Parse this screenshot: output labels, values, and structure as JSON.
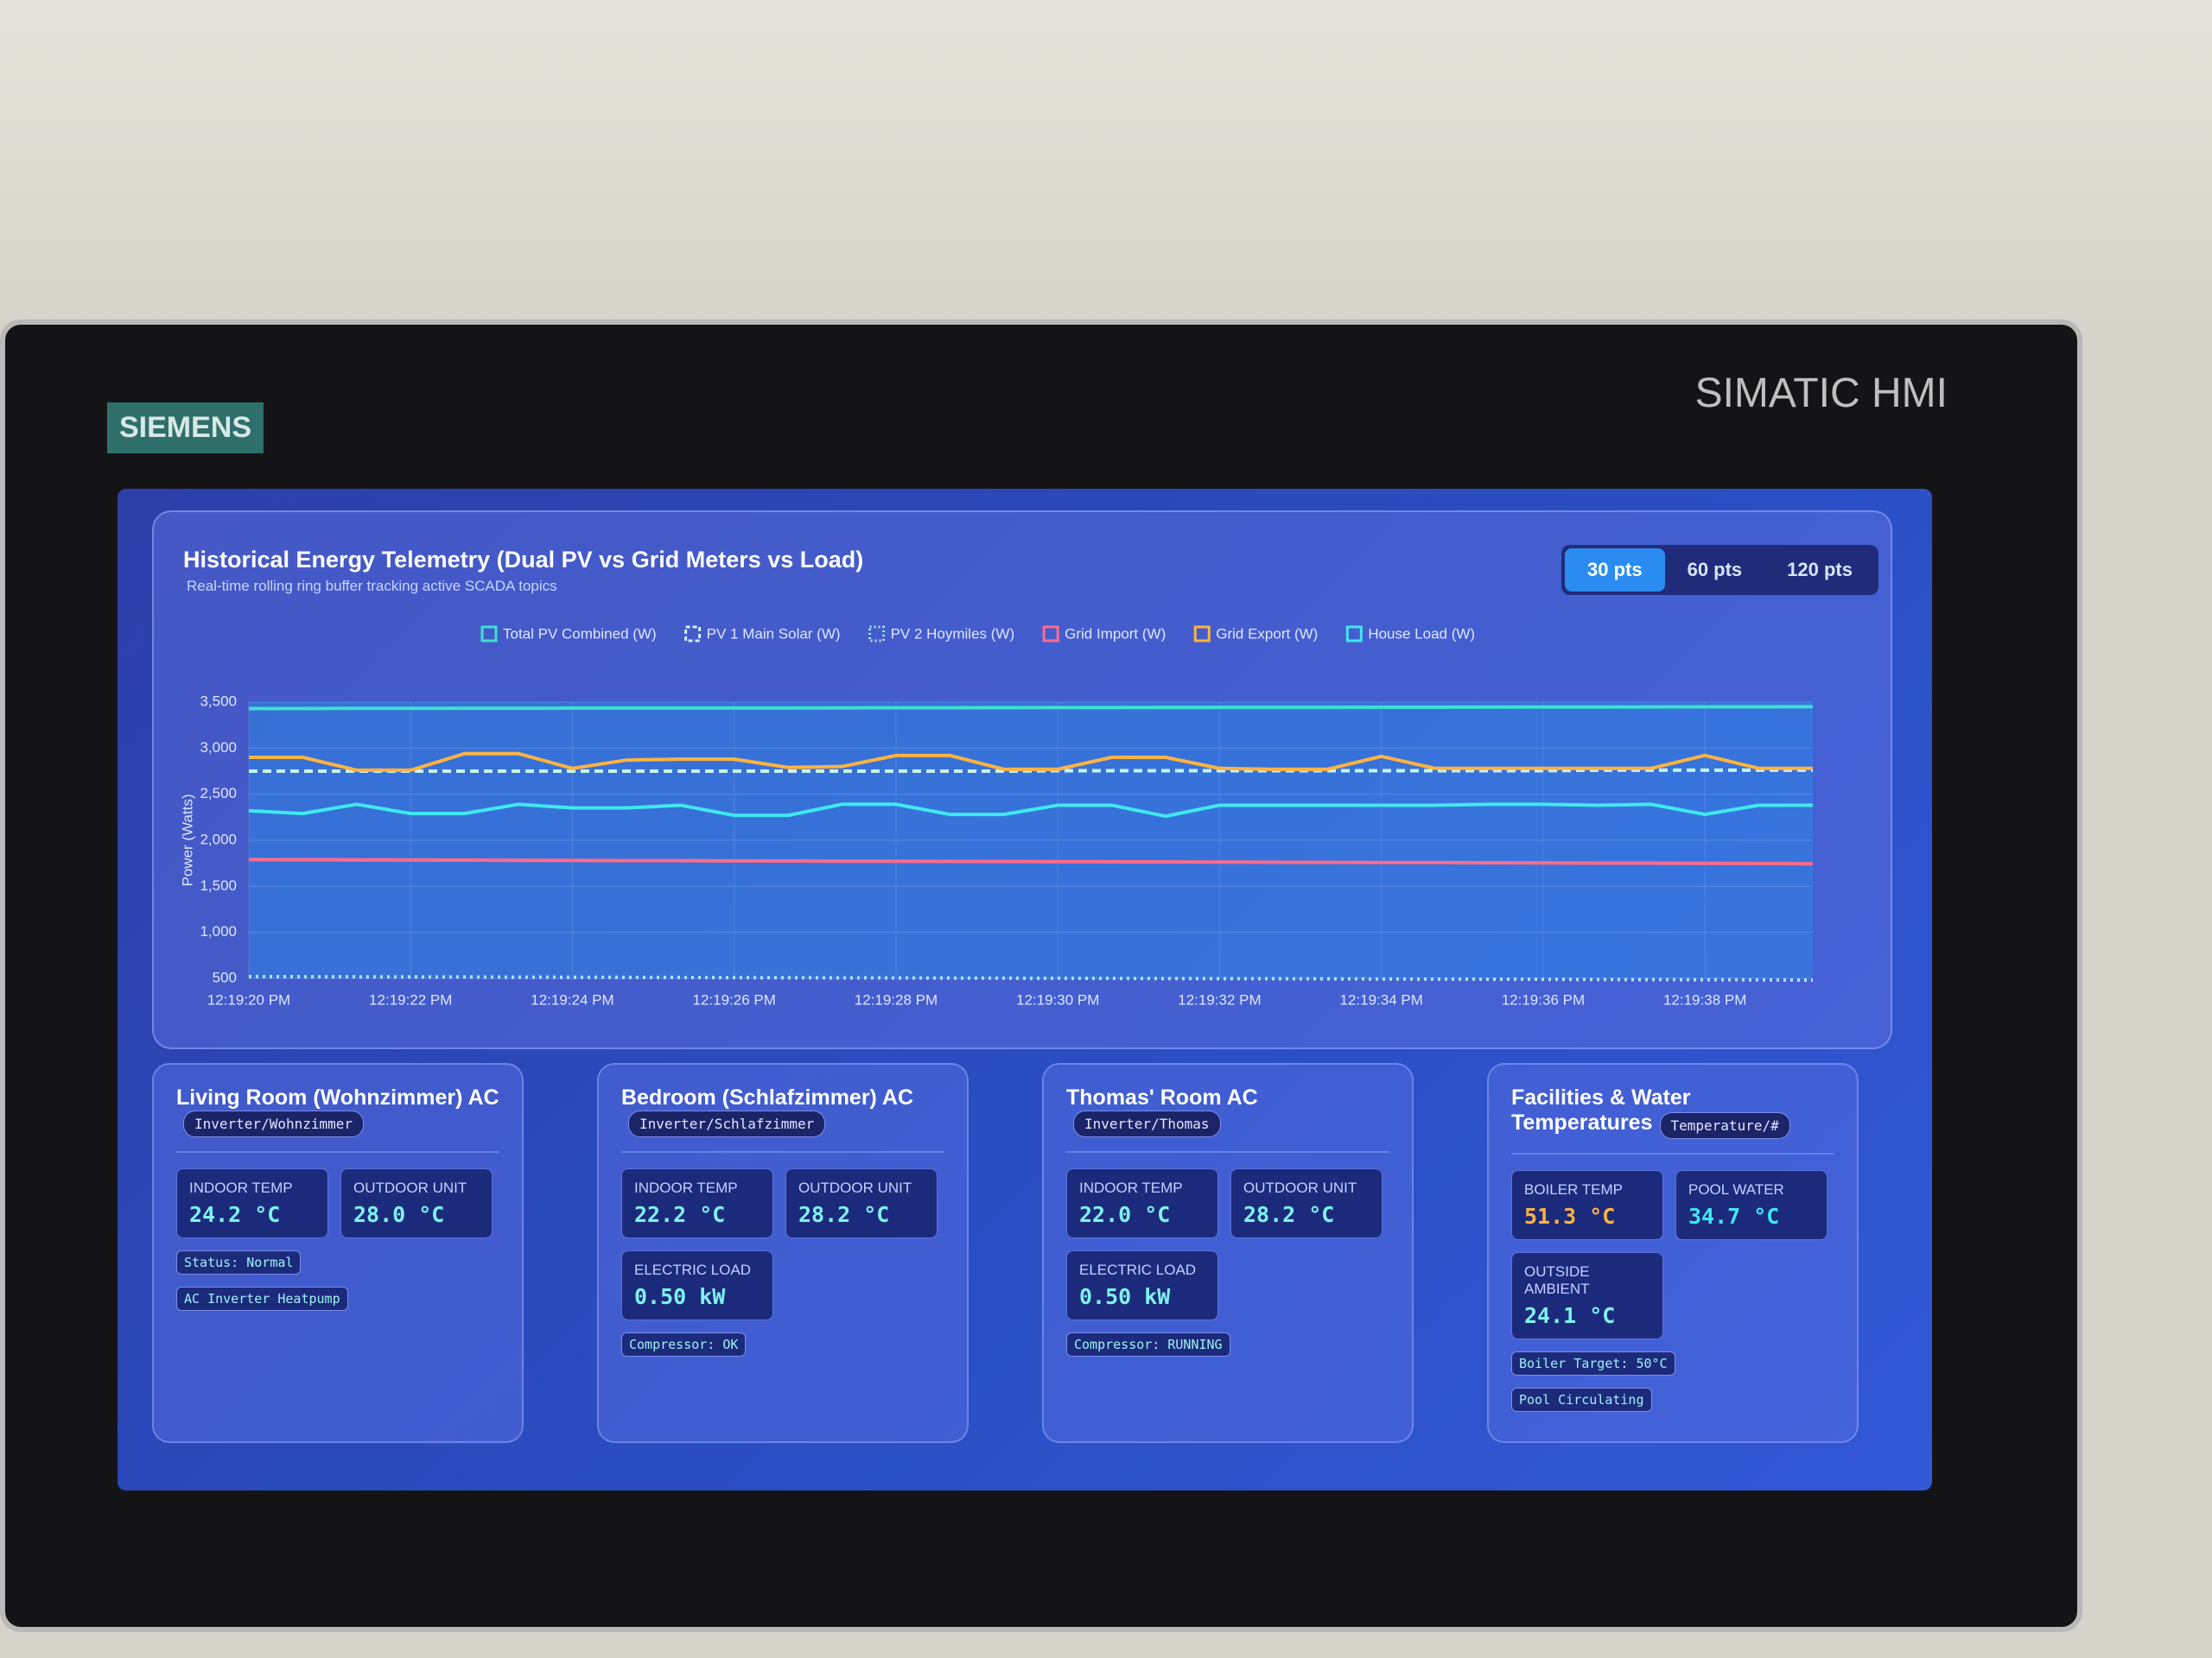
{
  "device": {
    "brand": "SIEMENS",
    "model": "SIMATIC HMI"
  },
  "header": {
    "title": "Historical Energy Telemetry (Dual PV vs Grid Meters vs Load)",
    "subtitle": "Real-time rolling ring buffer tracking active SCADA topics",
    "buttons": [
      "30 pts",
      "60 pts",
      "120 pts"
    ]
  },
  "chart_data": {
    "type": "line",
    "y_label": "Power (Watts)",
    "categories": [
      "12:19:20 PM",
      null,
      null,
      "12:19:22 PM",
      null,
      null,
      "12:19:24 PM",
      null,
      null,
      "12:19:26 PM",
      null,
      null,
      "12:19:28 PM",
      null,
      null,
      "12:19:30 PM",
      null,
      null,
      "12:19:32 PM",
      null,
      null,
      "12:19:34 PM",
      null,
      null,
      "12:19:36 PM",
      null,
      null,
      "12:19:38 PM",
      null,
      null
    ],
    "ylim": [
      500,
      3500
    ],
    "yticks": [
      500,
      {
        "value": 1000,
        "label": "1,000"
      },
      {
        "value": 1500,
        "label": "1,500"
      },
      {
        "value": 2000,
        "label": "2,000"
      },
      {
        "value": 2500,
        "label": "2,500"
      },
      {
        "value": 3000,
        "label": "3,000"
      },
      {
        "value": 3500,
        "label": "3,500"
      }
    ],
    "grid": true,
    "series": [
      {
        "name": "Total PV Combined (W)",
        "color": "#3de0d0",
        "style": "solid",
        "values": [
          3430,
          3430,
          3432,
          3432,
          3433,
          3433,
          3434,
          3435,
          3435,
          3436,
          3436,
          3437,
          3438,
          3438,
          3439,
          3440,
          3440,
          3441,
          3442,
          3442,
          3443,
          3444,
          3444,
          3445,
          3446,
          3446,
          3447,
          3448,
          3449,
          3450
        ]
      },
      {
        "name": "PV 1 Main Solar (W)",
        "color": "#c8f4f0",
        "style": "dashed",
        "values": [
          2750,
          2750,
          2750,
          2750,
          2750,
          2750,
          2750,
          2750,
          2750,
          2750,
          2750,
          2750,
          2750,
          2750,
          2750,
          2755,
          2755,
          2755,
          2755,
          2755,
          2755,
          2755,
          2755,
          2755,
          2755,
          2760,
          2760,
          2760,
          2760,
          2760
        ]
      },
      {
        "name": "PV 2 Hoymiles (W)",
        "color": "#a8e4f4",
        "style": "dotted",
        "values": [
          520,
          518,
          517,
          516,
          515,
          513,
          512,
          511,
          510,
          508,
          507,
          506,
          505,
          503,
          502,
          501,
          500,
          498,
          497,
          496,
          495,
          493,
          492,
          491,
          490,
          488,
          487,
          486,
          485,
          480
        ]
      },
      {
        "name": "Grid Import (W)",
        "color": "#ff6b8a",
        "style": "solid",
        "values": [
          1790,
          1788,
          1787,
          1785,
          1784,
          1782,
          1781,
          1779,
          1778,
          1776,
          1775,
          1773,
          1772,
          1770,
          1769,
          1767,
          1766,
          1764,
          1763,
          1761,
          1760,
          1758,
          1757,
          1755,
          1754,
          1752,
          1751,
          1749,
          1748,
          1745
        ]
      },
      {
        "name": "Grid Export (W)",
        "color": "#ffb340",
        "style": "solid",
        "values": [
          2900,
          2900,
          2760,
          2760,
          2940,
          2940,
          2780,
          2870,
          2880,
          2880,
          2790,
          2800,
          2920,
          2920,
          2770,
          2770,
          2900,
          2900,
          2780,
          2770,
          2770,
          2910,
          2780,
          2780,
          2780,
          2780,
          2780,
          2920,
          2780,
          2780
        ]
      },
      {
        "name": "House Load (W)",
        "color": "#40e8f0",
        "style": "solid",
        "values": [
          2320,
          2290,
          2390,
          2290,
          2290,
          2390,
          2350,
          2350,
          2380,
          2270,
          2270,
          2390,
          2390,
          2280,
          2280,
          2380,
          2380,
          2260,
          2380,
          2380,
          2380,
          2380,
          2380,
          2390,
          2390,
          2380,
          2390,
          2280,
          2380,
          2380
        ]
      }
    ]
  },
  "cards": [
    {
      "title": "Living Room (Wohnzimmer) AC",
      "topic": "Inverter/Wohnzimmer",
      "metrics": [
        {
          "label": "INDOOR TEMP",
          "value": "24.2 °C"
        },
        {
          "label": "OUTDOOR UNIT",
          "value": "28.0 °C"
        }
      ],
      "badges": [
        "Status: Normal",
        "AC Inverter Heatpump"
      ]
    },
    {
      "title": "Bedroom (Schlafzimmer) AC",
      "topic": "Inverter/Schlafzimmer",
      "metrics": [
        {
          "label": "INDOOR TEMP",
          "value": "22.2 °C"
        },
        {
          "label": "OUTDOOR UNIT",
          "value": "28.2 °C"
        },
        {
          "label": "ELECTRIC LOAD",
          "value": "0.50 kW"
        }
      ],
      "badges": [
        "Compressor: OK"
      ]
    },
    {
      "title": "Thomas' Room AC",
      "topic": "Inverter/Thomas",
      "metrics": [
        {
          "label": "INDOOR TEMP",
          "value": "22.0 °C"
        },
        {
          "label": "OUTDOOR UNIT",
          "value": "28.2 °C"
        },
        {
          "label": "ELECTRIC LOAD",
          "value": "0.50 kW"
        }
      ],
      "badges": [
        "Compressor: RUNNING"
      ]
    },
    {
      "title": "Facilities & Water Temperatures",
      "topic": "Temperature/#",
      "metrics": [
        {
          "label": "BOILER TEMP",
          "value": "51.3 °C",
          "color": "#ffb340"
        },
        {
          "label": "POOL WATER",
          "value": "34.7 °C",
          "color": "#40e8f0"
        },
        {
          "label": "OUTSIDE AMBIENT",
          "value": "24.1 °C"
        }
      ],
      "badges": [
        "Boiler Target: 50°C",
        "Pool Circulating"
      ]
    }
  ]
}
